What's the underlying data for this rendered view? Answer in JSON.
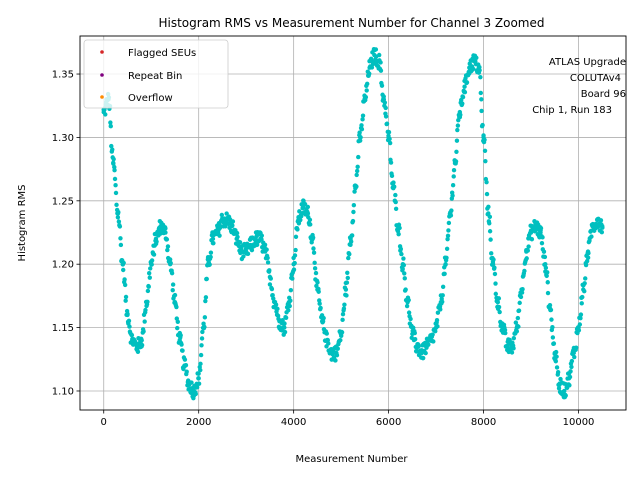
{
  "chart_data": {
    "type": "scatter",
    "title": "Histogram RMS vs Measurement Number for Channel 3 Zoomed",
    "xlabel": "Measurement Number",
    "ylabel": "Histogram RMS",
    "xlim": [
      -500,
      11000
    ],
    "ylim": [
      1.085,
      1.38
    ],
    "xticks": [
      0,
      2000,
      4000,
      6000,
      8000,
      10000
    ],
    "xtick_labels": [
      "0",
      "2000",
      "4000",
      "6000",
      "8000",
      "10000"
    ],
    "yticks": [
      1.1,
      1.15,
      1.2,
      1.25,
      1.3,
      1.35
    ],
    "ytick_labels": [
      "1.10",
      "1.15",
      "1.20",
      "1.25",
      "1.30",
      "1.35"
    ],
    "grid": true,
    "legend_position": "top-left",
    "legend": [
      {
        "label": "Flagged SEUs",
        "color": "#d62728"
      },
      {
        "label": "Repeat Bin",
        "color": "#800080"
      },
      {
        "label": "Overflow",
        "color": "#ff8c00"
      }
    ],
    "annotation_lines": [
      "ATLAS Upgrade",
      "COLUTAv4",
      "Board 96",
      "Chip 1, Run 183"
    ],
    "series": [
      {
        "name": "Histogram RMS",
        "color": "#00bfbf",
        "marker_size": 2.2,
        "x": [
          0,
          100,
          200,
          300,
          400,
          500,
          600,
          700,
          800,
          900,
          1000,
          1100,
          1200,
          1300,
          1400,
          1500,
          1600,
          1700,
          1800,
          1900,
          2000,
          2100,
          2200,
          2300,
          2400,
          2500,
          2600,
          2700,
          2800,
          2900,
          3000,
          3100,
          3200,
          3300,
          3400,
          3500,
          3600,
          3700,
          3800,
          3900,
          4000,
          4100,
          4200,
          4300,
          4400,
          4500,
          4600,
          4700,
          4800,
          4900,
          5000,
          5100,
          5200,
          5300,
          5400,
          5500,
          5600,
          5700,
          5800,
          5900,
          6000,
          6100,
          6200,
          6300,
          6400,
          6500,
          6600,
          6700,
          6800,
          6900,
          7000,
          7100,
          7200,
          7300,
          7400,
          7500,
          7600,
          7700,
          7800,
          7900,
          8000,
          8100,
          8200,
          8300,
          8400,
          8500,
          8600,
          8700,
          8800,
          8900,
          9000,
          9100,
          9200,
          9300,
          9400,
          9500,
          9600,
          9700,
          9800,
          9900,
          10000,
          10100,
          10200,
          10300,
          10400,
          10500
        ],
        "y": [
          1.32,
          1.33,
          1.28,
          1.24,
          1.2,
          1.16,
          1.14,
          1.135,
          1.14,
          1.17,
          1.2,
          1.22,
          1.23,
          1.225,
          1.2,
          1.17,
          1.14,
          1.12,
          1.105,
          1.1,
          1.11,
          1.15,
          1.2,
          1.22,
          1.225,
          1.235,
          1.235,
          1.23,
          1.22,
          1.21,
          1.21,
          1.215,
          1.22,
          1.22,
          1.21,
          1.19,
          1.17,
          1.155,
          1.15,
          1.17,
          1.2,
          1.235,
          1.245,
          1.24,
          1.22,
          1.18,
          1.155,
          1.14,
          1.13,
          1.13,
          1.145,
          1.18,
          1.22,
          1.26,
          1.3,
          1.33,
          1.355,
          1.365,
          1.36,
          1.33,
          1.3,
          1.26,
          1.23,
          1.2,
          1.17,
          1.145,
          1.135,
          1.13,
          1.135,
          1.14,
          1.15,
          1.17,
          1.2,
          1.24,
          1.28,
          1.32,
          1.34,
          1.355,
          1.36,
          1.355,
          1.3,
          1.24,
          1.2,
          1.17,
          1.15,
          1.135,
          1.135,
          1.15,
          1.18,
          1.21,
          1.225,
          1.23,
          1.225,
          1.2,
          1.165,
          1.13,
          1.105,
          1.1,
          1.11,
          1.13,
          1.15,
          1.18,
          1.21,
          1.23,
          1.235,
          1.23
        ]
      }
    ]
  }
}
